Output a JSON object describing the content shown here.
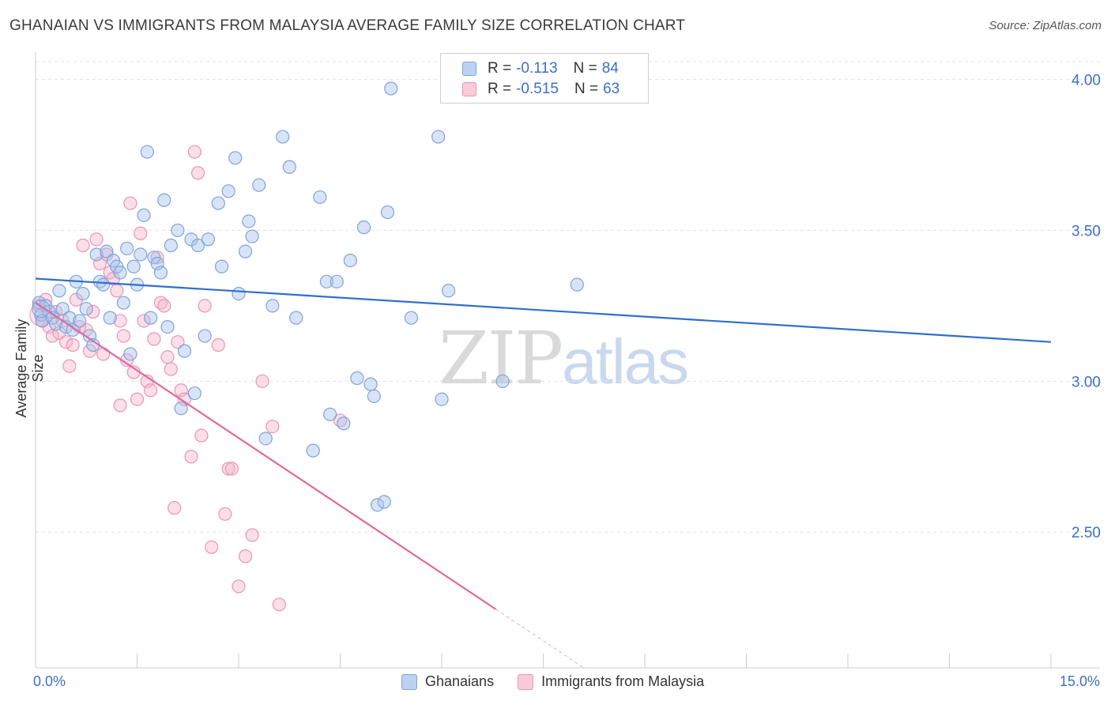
{
  "header": {
    "title": "GHANAIAN VS IMMIGRANTS FROM MALAYSIA AVERAGE FAMILY SIZE CORRELATION CHART",
    "source": "Source: ZipAtlas.com"
  },
  "watermark": {
    "zip": "ZIP",
    "atlas": "atlas"
  },
  "legend_top": {
    "rows": [
      {
        "r_label": "R =",
        "r_value": "-0.113",
        "n_label": "N =",
        "n_value": "84"
      },
      {
        "r_label": "R =",
        "r_value": "-0.515",
        "n_label": "N =",
        "n_value": "63"
      }
    ]
  },
  "legend_bottom": {
    "items": [
      "Ghanaians",
      "Immigrants from Malaysia"
    ]
  },
  "colors": {
    "blue_fill": "#a9c4ec",
    "blue_stroke": "#7da3de",
    "blue_line": "#2f6fcd",
    "pink_fill": "#f5b8cb",
    "pink_stroke": "#ec93b1",
    "pink_line": "#e0699a",
    "grid": "#e2e2e2",
    "tick_text": "#3d6ec9"
  },
  "chart_data": {
    "type": "scatter",
    "title": "GHANAIAN VS IMMIGRANTS FROM MALAYSIA AVERAGE FAMILY SIZE CORRELATION CHART",
    "xlabel": "",
    "ylabel": "Average Family Size",
    "xlim": [
      0,
      15
    ],
    "ylim": [
      2.05,
      4.08
    ],
    "x_tick_labels": [
      "0.0%",
      "15.0%"
    ],
    "y_ticks": [
      2.5,
      3.0,
      3.5,
      4.0
    ],
    "y_tick_labels": [
      "2.50",
      "3.00",
      "3.50",
      "4.00"
    ],
    "grid": "horizontal dashed",
    "legend_position": "top-center",
    "series": [
      {
        "name": "Ghanaians",
        "r": -0.113,
        "n": 84,
        "trend": {
          "x": [
            0,
            15
          ],
          "y": [
            3.34,
            3.13
          ]
        },
        "points": [
          [
            0.05,
            3.26
          ],
          [
            0.08,
            3.22
          ],
          [
            0.1,
            3.2
          ],
          [
            0.15,
            3.25
          ],
          [
            0.2,
            3.23
          ],
          [
            0.25,
            3.21
          ],
          [
            0.3,
            3.19
          ],
          [
            0.35,
            3.3
          ],
          [
            0.4,
            3.24
          ],
          [
            0.45,
            3.18
          ],
          [
            0.5,
            3.21
          ],
          [
            0.55,
            3.17
          ],
          [
            0.6,
            3.33
          ],
          [
            0.65,
            3.2
          ],
          [
            0.7,
            3.29
          ],
          [
            0.75,
            3.24
          ],
          [
            0.8,
            3.15
          ],
          [
            0.85,
            3.12
          ],
          [
            0.9,
            3.42
          ],
          [
            0.95,
            3.33
          ],
          [
            1.0,
            3.32
          ],
          [
            1.05,
            3.43
          ],
          [
            1.1,
            3.21
          ],
          [
            1.15,
            3.4
          ],
          [
            1.2,
            3.38
          ],
          [
            1.25,
            3.36
          ],
          [
            1.3,
            3.26
          ],
          [
            1.35,
            3.44
          ],
          [
            1.4,
            3.09
          ],
          [
            1.45,
            3.38
          ],
          [
            1.5,
            3.32
          ],
          [
            1.55,
            3.42
          ],
          [
            1.6,
            3.55
          ],
          [
            1.65,
            3.76
          ],
          [
            1.7,
            3.21
          ],
          [
            1.75,
            3.41
          ],
          [
            1.8,
            3.39
          ],
          [
            1.85,
            3.36
          ],
          [
            1.9,
            3.6
          ],
          [
            1.95,
            3.18
          ],
          [
            2.0,
            3.45
          ],
          [
            2.1,
            3.5
          ],
          [
            2.15,
            2.91
          ],
          [
            2.2,
            3.1
          ],
          [
            2.3,
            3.47
          ],
          [
            2.35,
            2.96
          ],
          [
            2.4,
            3.45
          ],
          [
            2.5,
            3.15
          ],
          [
            2.55,
            3.47
          ],
          [
            2.7,
            3.59
          ],
          [
            2.75,
            3.38
          ],
          [
            2.85,
            3.63
          ],
          [
            2.95,
            3.74
          ],
          [
            3.0,
            3.29
          ],
          [
            3.1,
            3.43
          ],
          [
            3.15,
            3.53
          ],
          [
            3.2,
            3.48
          ],
          [
            3.3,
            3.65
          ],
          [
            3.4,
            2.81
          ],
          [
            3.5,
            3.25
          ],
          [
            3.65,
            3.81
          ],
          [
            3.75,
            3.71
          ],
          [
            3.85,
            3.21
          ],
          [
            4.1,
            2.77
          ],
          [
            4.2,
            3.61
          ],
          [
            4.3,
            3.33
          ],
          [
            4.35,
            2.89
          ],
          [
            4.45,
            3.33
          ],
          [
            4.55,
            2.86
          ],
          [
            4.65,
            3.4
          ],
          [
            4.75,
            3.01
          ],
          [
            4.85,
            3.51
          ],
          [
            4.95,
            2.99
          ],
          [
            5.0,
            2.95
          ],
          [
            5.05,
            2.59
          ],
          [
            5.15,
            2.6
          ],
          [
            5.2,
            3.56
          ],
          [
            5.25,
            3.97
          ],
          [
            5.55,
            3.21
          ],
          [
            5.95,
            3.81
          ],
          [
            6.0,
            2.94
          ],
          [
            6.1,
            3.3
          ],
          [
            6.9,
            3.0
          ],
          [
            8.0,
            3.32
          ]
        ]
      },
      {
        "name": "Immigrants from Malaysia",
        "r": -0.515,
        "n": 63,
        "trend": {
          "x": [
            0,
            8.1
          ],
          "y": [
            3.26,
            2.05
          ]
        },
        "points": [
          [
            0.05,
            3.25
          ],
          [
            0.08,
            3.22
          ],
          [
            0.1,
            3.2
          ],
          [
            0.15,
            3.27
          ],
          [
            0.2,
            3.18
          ],
          [
            0.25,
            3.15
          ],
          [
            0.3,
            3.23
          ],
          [
            0.35,
            3.16
          ],
          [
            0.4,
            3.2
          ],
          [
            0.45,
            3.13
          ],
          [
            0.5,
            3.05
          ],
          [
            0.55,
            3.12
          ],
          [
            0.6,
            3.27
          ],
          [
            0.65,
            3.18
          ],
          [
            0.7,
            3.45
          ],
          [
            0.75,
            3.17
          ],
          [
            0.8,
            3.1
          ],
          [
            0.85,
            3.23
          ],
          [
            0.9,
            3.47
          ],
          [
            0.95,
            3.39
          ],
          [
            1.0,
            3.09
          ],
          [
            1.05,
            3.42
          ],
          [
            1.1,
            3.36
          ],
          [
            1.15,
            3.34
          ],
          [
            1.2,
            3.3
          ],
          [
            1.25,
            3.2
          ],
          [
            1.3,
            3.15
          ],
          [
            1.35,
            3.07
          ],
          [
            1.4,
            3.59
          ],
          [
            1.45,
            3.03
          ],
          [
            1.5,
            2.94
          ],
          [
            1.55,
            3.49
          ],
          [
            1.6,
            3.2
          ],
          [
            1.65,
            3.0
          ],
          [
            1.7,
            2.97
          ],
          [
            1.75,
            3.14
          ],
          [
            1.8,
            3.41
          ],
          [
            1.85,
            3.26
          ],
          [
            1.9,
            3.25
          ],
          [
            1.95,
            3.08
          ],
          [
            2.0,
            3.04
          ],
          [
            2.05,
            2.58
          ],
          [
            2.1,
            3.13
          ],
          [
            2.15,
            2.97
          ],
          [
            2.2,
            2.94
          ],
          [
            2.3,
            2.75
          ],
          [
            2.35,
            3.76
          ],
          [
            2.4,
            3.69
          ],
          [
            2.45,
            2.82
          ],
          [
            2.5,
            3.25
          ],
          [
            2.6,
            2.45
          ],
          [
            2.7,
            3.12
          ],
          [
            2.8,
            2.56
          ],
          [
            2.85,
            2.71
          ],
          [
            2.9,
            2.71
          ],
          [
            3.0,
            2.32
          ],
          [
            3.1,
            2.42
          ],
          [
            3.2,
            2.49
          ],
          [
            3.35,
            3.0
          ],
          [
            3.5,
            2.85
          ],
          [
            3.6,
            2.26
          ],
          [
            4.5,
            2.87
          ],
          [
            1.25,
            2.92
          ]
        ]
      }
    ]
  }
}
